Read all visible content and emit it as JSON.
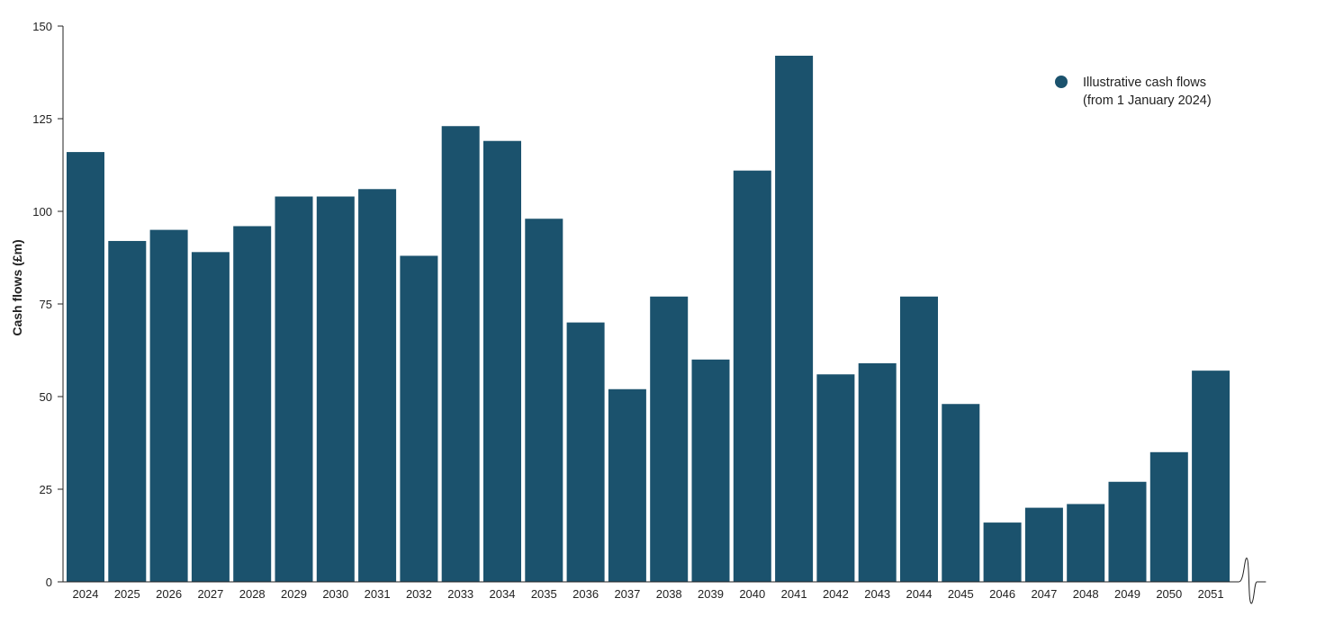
{
  "chart_data": {
    "type": "bar",
    "ylabel": "Cash flows (£m)",
    "xlabel": "",
    "ylim": [
      0,
      150
    ],
    "yticks": [
      0,
      25,
      50,
      75,
      100,
      125,
      150
    ],
    "categories": [
      "2024",
      "2025",
      "2026",
      "2027",
      "2028",
      "2029",
      "2030",
      "2031",
      "2032",
      "2033",
      "2034",
      "2035",
      "2036",
      "2037",
      "2038",
      "2039",
      "2040",
      "2041",
      "2042",
      "2043",
      "2044",
      "2045",
      "2046",
      "2047",
      "2048",
      "2049",
      "2050",
      "2051"
    ],
    "series": [
      {
        "name": "Illustrative cash flows (from 1 January 2024)",
        "values": [
          116,
          92,
          95,
          89,
          96,
          104,
          104,
          106,
          88,
          123,
          119,
          98,
          70,
          52,
          77,
          60,
          111,
          142,
          56,
          59,
          77,
          48,
          16,
          20,
          21,
          27,
          35,
          57
        ]
      }
    ],
    "legend": {
      "position": "top-right",
      "lines": [
        "Illustrative cash flows",
        "(from 1 January 2024)"
      ]
    },
    "grid": false,
    "bar_color": "#1b526d",
    "axis_break": true
  }
}
